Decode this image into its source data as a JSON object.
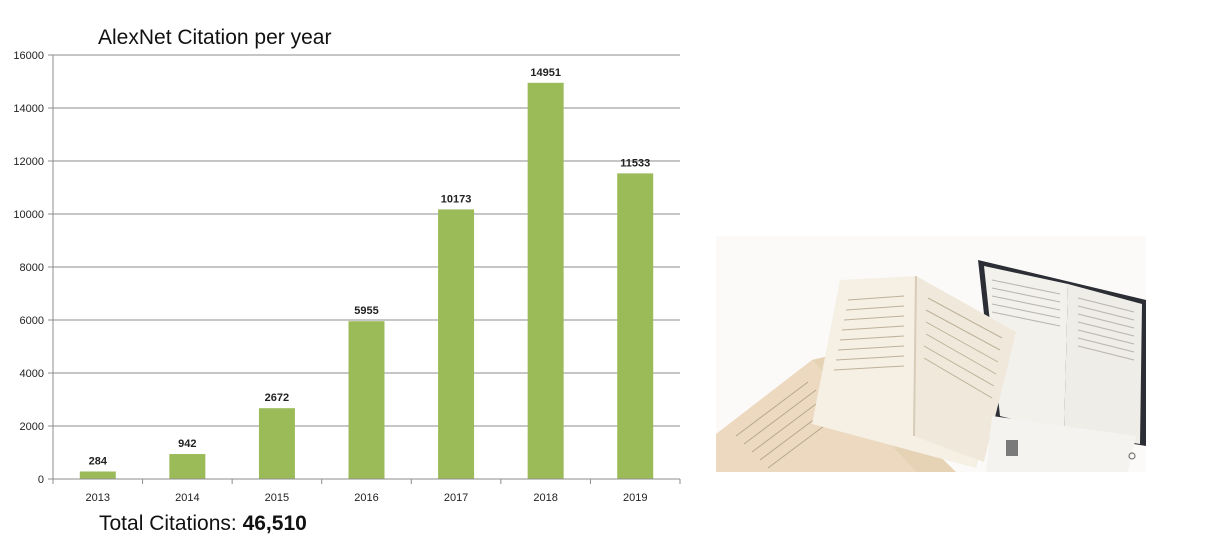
{
  "chart_data": {
    "type": "bar",
    "title": "AlexNet Citation per year",
    "categories": [
      "2013",
      "2014",
      "2015",
      "2016",
      "2017",
      "2018",
      "2019"
    ],
    "values": [
      284,
      942,
      2672,
      5955,
      10173,
      14951,
      11533
    ],
    "data_labels": [
      "284",
      "942",
      "2672",
      "5955",
      "10173",
      "14951",
      "11533"
    ],
    "xlabel": "",
    "ylabel": "",
    "ylim": [
      0,
      16000
    ],
    "yticks": [
      0,
      2000,
      4000,
      6000,
      8000,
      10000,
      12000,
      14000,
      16000
    ],
    "grid": true,
    "legend": "none",
    "bar_color": "#9bbb59"
  },
  "footer": {
    "total_label": "Total Citations: ",
    "total_value": "46,510"
  }
}
